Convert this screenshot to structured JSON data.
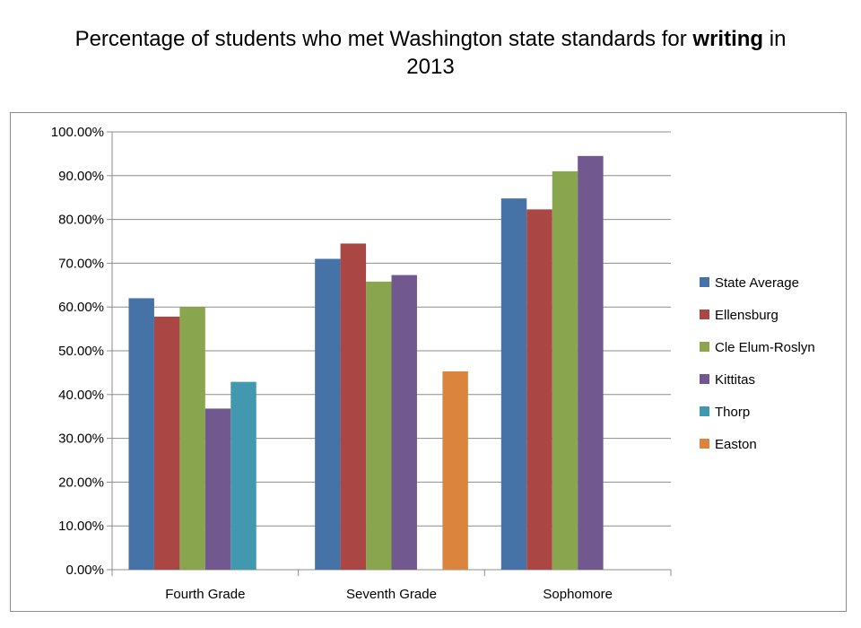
{
  "title": {
    "prefix": "Percentage of students who met Washington state standards for",
    "emphasis": "writing",
    "suffix": "in",
    "year": "2013"
  },
  "chart_data": {
    "type": "bar",
    "title": "Percentage of students who met Washington state standards for writing in 2013",
    "categories": [
      "Fourth Grade",
      "Seventh Grade",
      "Sophomore"
    ],
    "series": [
      {
        "name": "State Average",
        "color": "#4572A7",
        "values": [
          62.0,
          71.0,
          84.8
        ]
      },
      {
        "name": "Ellensburg",
        "color": "#AA4643",
        "values": [
          57.8,
          74.5,
          82.3
        ]
      },
      {
        "name": "Cle Elum-Roslyn",
        "color": "#89A54E",
        "values": [
          60.0,
          65.8,
          91.0
        ]
      },
      {
        "name": "Kittitas",
        "color": "#71588F",
        "values": [
          36.8,
          67.3,
          94.5
        ]
      },
      {
        "name": "Thorp",
        "color": "#4198AF",
        "values": [
          42.9,
          null,
          null
        ]
      },
      {
        "name": "Easton",
        "color": "#DB843D",
        "values": [
          null,
          45.3,
          null
        ]
      }
    ],
    "ylim": [
      0,
      100
    ],
    "ytick_step": 10,
    "ytick_format": "percent-2dp",
    "grid": true,
    "legend_position": "right"
  }
}
